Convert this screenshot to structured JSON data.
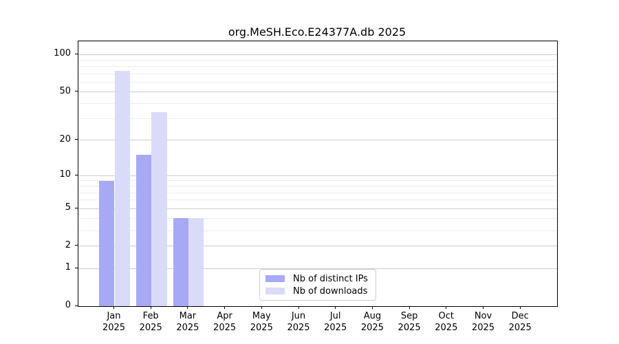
{
  "title": "org.MeSH.Eco.E24377A.db 2025",
  "chart_data": {
    "type": "bar",
    "title": "org.MeSH.Eco.E24377A.db 2025",
    "categories": [
      "Jan",
      "Feb",
      "Mar",
      "Apr",
      "May",
      "Jun",
      "Jul",
      "Aug",
      "Sep",
      "Oct",
      "Nov",
      "Dec"
    ],
    "category_year": "2025",
    "series": [
      {
        "name": "Nb of distinct IPs",
        "color": "#a8a9f5",
        "values": [
          9,
          15,
          4,
          0,
          0,
          0,
          0,
          0,
          0,
          0,
          0,
          0
        ]
      },
      {
        "name": "Nb of downloads",
        "color": "#dadbf9",
        "values": [
          74,
          34,
          4,
          0,
          0,
          0,
          0,
          0,
          0,
          0,
          0,
          0
        ]
      }
    ],
    "xlabel": "",
    "ylabel": "",
    "yscale": "log1p",
    "ylim": [
      0,
      128
    ],
    "yticks": [
      0,
      1,
      2,
      5,
      10,
      20,
      50,
      100
    ],
    "minor_gridlines": [
      3,
      4,
      6,
      7,
      8,
      9,
      30,
      40,
      60,
      70,
      80,
      90
    ],
    "grid": true,
    "legend_position": "bottom-center"
  }
}
